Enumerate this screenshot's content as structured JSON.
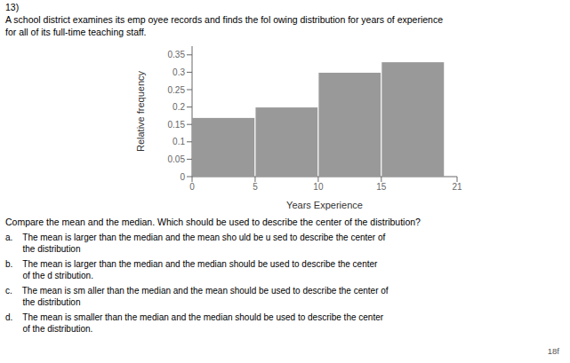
{
  "chart_data": {
    "type": "histogram",
    "title": "A school district examines its emp oyee records and finds the fol owing distribution for years of experience\nfor all of its full-time teaching staff.",
    "bins": [
      0,
      5,
      10,
      15,
      20
    ],
    "values": [
      0.17,
      0.2,
      0.3,
      0.33
    ],
    "color": "#999999",
    "xlabel": "Years Experience",
    "ylabel": "Relative frequency",
    "xlim": [
      0,
      21
    ],
    "ylim": [
      0,
      0.375
    ],
    "xticks": [
      0,
      5,
      10,
      15,
      21
    ],
    "yticks": [
      0,
      0.05,
      0.1,
      0.15,
      0.2,
      0.25,
      0.3,
      0.35
    ],
    "annotations": [
      "13)",
      "Compare the mean and the median. Which should be used to describe the center of the distribution?",
      "a.    The mean is larger than the median and the mean sho uld be u sed to describe the center of\n       the distribution",
      "b.    The mean is larger than the median and the median should be used to describe the center\n       of the d stribution.",
      "c.    The mean is sm aller than the median and the mean should be used to describe the center of\n       the distribution",
      "d.    The mean is smaller than the median and the median should be used to describe the center\n       of the distribution.",
      "18f"
    ]
  }
}
